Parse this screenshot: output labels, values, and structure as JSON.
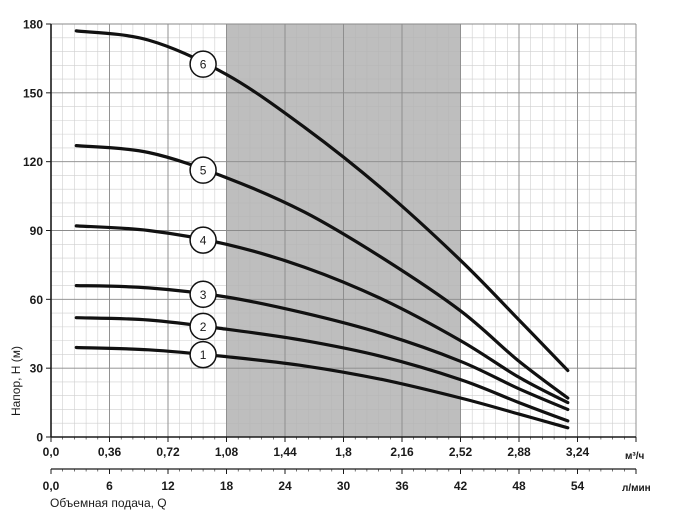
{
  "chart_data": {
    "type": "line",
    "ylabel": "Напор, H (м)",
    "xlabel": "Объемная подача, Q",
    "y_ticks": [
      "0",
      "30",
      "60",
      "90",
      "120",
      "150",
      "180"
    ],
    "x_ticks_m3h": [
      "0,0",
      "0,36",
      "0,72",
      "1,08",
      "1,44",
      "1,8",
      "2,16",
      "2,52",
      "2,88",
      "3,24"
    ],
    "x_ticks_lmin": [
      "0,0",
      "6",
      "12",
      "18",
      "24",
      "30",
      "36",
      "42",
      "48",
      "54"
    ],
    "x_unit_m3h": "м³/ч",
    "x_unit_lmin": "л/мин",
    "xlim_lmin": [
      0,
      60
    ],
    "ylim": [
      0,
      180
    ],
    "grid": true,
    "shaded_operating_range_lmin": [
      18,
      42
    ],
    "series": [
      {
        "name": "1",
        "x": [
          2.6,
          10,
          18,
          26,
          34,
          42,
          48,
          53
        ],
        "y": [
          39,
          38,
          35,
          31,
          25,
          17,
          10,
          4
        ]
      },
      {
        "name": "2",
        "x": [
          2.6,
          10,
          18,
          26,
          34,
          42,
          48,
          53
        ],
        "y": [
          52,
          51,
          47,
          42,
          35,
          25,
          15,
          7
        ]
      },
      {
        "name": "3",
        "x": [
          2.6,
          10,
          18,
          26,
          34,
          42,
          48,
          53
        ],
        "y": [
          66,
          65,
          61,
          54,
          45,
          33,
          21,
          12
        ]
      },
      {
        "name": "4",
        "x": [
          2.6,
          10,
          18,
          26,
          34,
          42,
          48,
          53
        ],
        "y": [
          92,
          90,
          84,
          74,
          60,
          42,
          26,
          15
        ]
      },
      {
        "name": "5",
        "x": [
          2.6,
          10,
          18,
          26,
          34,
          42,
          48,
          53
        ],
        "y": [
          127,
          124,
          113,
          98,
          78,
          55,
          33,
          17
        ]
      },
      {
        "name": "6",
        "x": [
          2.6,
          10,
          18,
          26,
          34,
          42,
          48,
          53
        ],
        "y": [
          177,
          173,
          158,
          135,
          108,
          77,
          51,
          29
        ]
      }
    ],
    "curve_label_x_lmin": 15.6
  }
}
